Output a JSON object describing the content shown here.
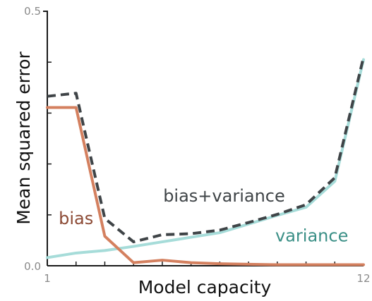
{
  "chart_data": {
    "type": "line",
    "x": [
      1,
      2,
      3,
      4,
      5,
      6,
      7,
      8,
      9,
      10,
      11,
      12
    ],
    "xlim": [
      1,
      12
    ],
    "ylim": [
      0,
      0.5
    ],
    "xticks": [
      "1",
      "12"
    ],
    "yticks": [
      "0.0",
      "0.5"
    ],
    "xlabel": "Model capacity",
    "ylabel": "Mean squared error",
    "grid": false,
    "legend": "none",
    "series": [
      {
        "name": "bias",
        "color": "#d4805f",
        "style": "solid",
        "values": [
          0.311,
          0.311,
          0.058,
          0.006,
          0.011,
          0.006,
          0.004,
          0.003,
          0.002,
          0.002,
          0.002,
          0.002
        ]
      },
      {
        "name": "variance",
        "color": "#a6dcd9",
        "style": "solid",
        "values": [
          0.016,
          0.025,
          0.03,
          0.038,
          0.047,
          0.056,
          0.065,
          0.082,
          0.099,
          0.115,
          0.166,
          0.405
        ]
      },
      {
        "name": "bias+variance",
        "color": "#3f4447",
        "style": "dashed",
        "values": [
          0.333,
          0.339,
          0.093,
          0.047,
          0.061,
          0.063,
          0.07,
          0.085,
          0.101,
          0.12,
          0.173,
          0.41
        ]
      }
    ],
    "annotations": [
      {
        "text": "bias",
        "color": "#8c4a35",
        "x": 2.0,
        "y": 0.082
      },
      {
        "text": "bias+variance",
        "color": "#3f4447",
        "x": 7.15,
        "y": 0.126
      },
      {
        "text": "variance",
        "color": "#3a8f86",
        "x": 10.2,
        "y": 0.048
      }
    ]
  }
}
